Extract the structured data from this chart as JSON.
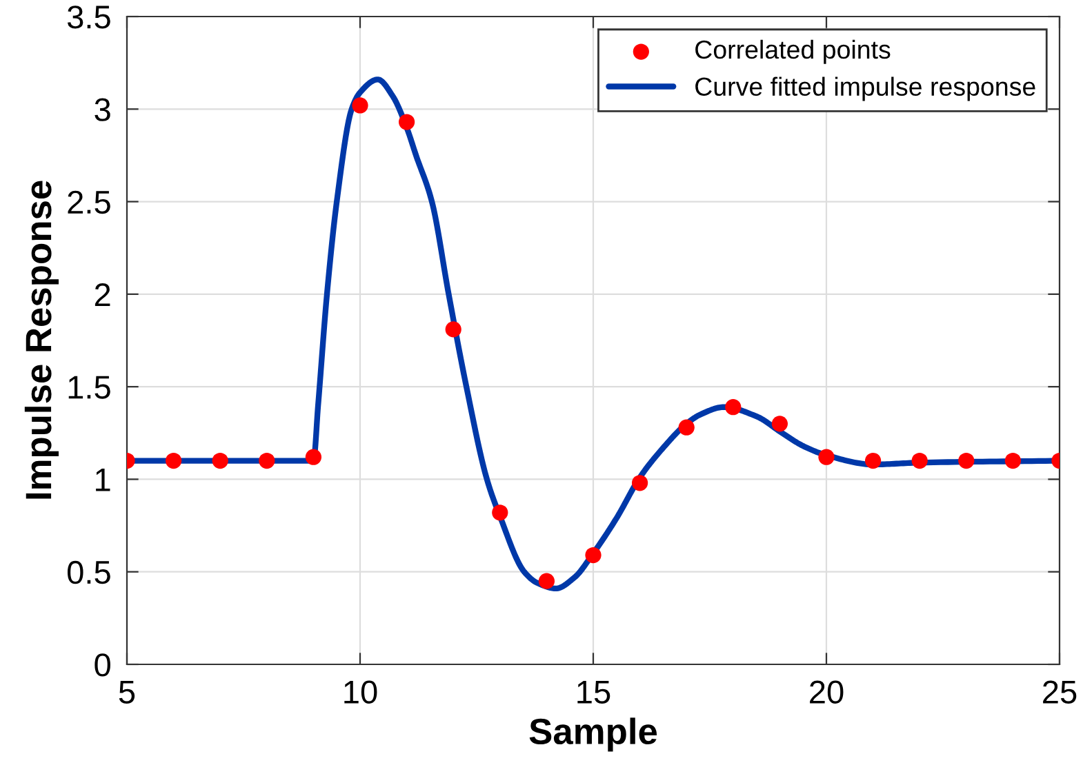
{
  "chart_data": {
    "type": "line",
    "xlabel": "Sample",
    "ylabel": "Impulse Response",
    "xlim": [
      5,
      25
    ],
    "xticks": [
      5,
      10,
      15,
      20,
      25
    ],
    "ylim": [
      0,
      3.5
    ],
    "yticks": [
      0,
      0.5,
      1,
      1.5,
      2,
      2.5,
      3,
      3.5
    ],
    "grid": true,
    "legend": "top right",
    "series": [
      {
        "name": "Correlated points",
        "type": "scatter",
        "marker": "circle",
        "color": "#ff0000",
        "x": [
          5,
          6,
          7,
          8,
          9,
          10,
          11,
          12,
          13,
          14,
          15,
          16,
          17,
          18,
          19,
          20,
          21,
          22,
          23,
          24,
          25
        ],
        "values": [
          1.1,
          1.1,
          1.1,
          1.1,
          1.12,
          3.02,
          2.93,
          1.81,
          0.82,
          0.45,
          0.59,
          0.98,
          1.28,
          1.39,
          1.3,
          1.12,
          1.1,
          1.1,
          1.1,
          1.1,
          1.1
        ]
      },
      {
        "name": "Curve fitted impulse response",
        "marker": "none",
        "line_style": "solid",
        "color": "#0038a8",
        "x": [
          5,
          9,
          9.1,
          9.29,
          9.5,
          9.82,
          10.0,
          10.38,
          10.7,
          11.0,
          11.2,
          11.54,
          11.9,
          12.28,
          12.72,
          13.0,
          13.52,
          13.8,
          14.2,
          14.6,
          15.0,
          15.5,
          16.0,
          16.5,
          17.0,
          17.3,
          17.8,
          18.5,
          19.05,
          19.5,
          20.0,
          21.0,
          22.0,
          25.0
        ],
        "values": [
          1.1,
          1.1,
          1.4,
          2.0,
          2.5,
          3.0,
          3.09,
          3.16,
          3.07,
          2.9,
          2.75,
          2.5,
          2.0,
          1.5,
          1.0,
          0.8,
          0.5,
          0.44,
          0.41,
          0.47,
          0.6,
          0.79,
          1.01,
          1.17,
          1.3,
          1.35,
          1.39,
          1.34,
          1.25,
          1.18,
          1.13,
          1.08,
          1.09,
          1.1
        ]
      }
    ]
  }
}
